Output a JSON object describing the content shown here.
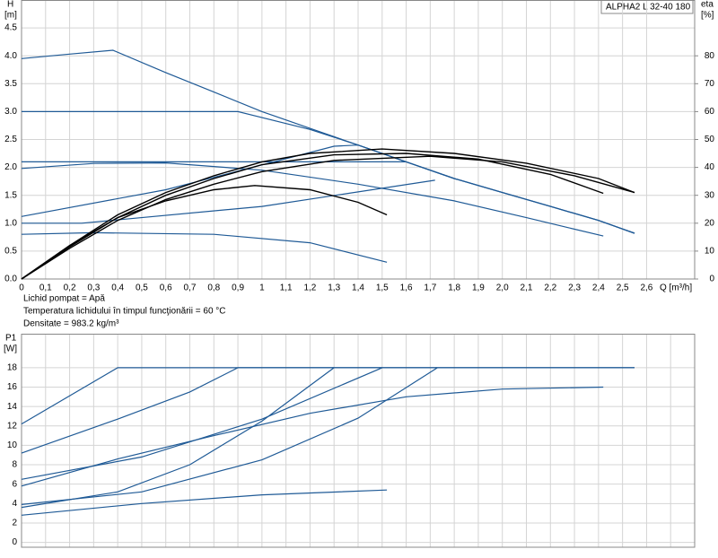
{
  "chart_data": [
    {
      "type": "line",
      "title": "ALPHA2 L 32-40 180",
      "ylabel": "H",
      "ylabel_unit": "[m]",
      "y2label": "eta",
      "y2label_unit": "[%]",
      "xlabel": "Q [m³/h]",
      "notes": [
        "Lichid pompat = Apă",
        "Temperatura lichidului în timpul funcţionării = 60 °C",
        "Densitate = 983.2 kg/m³"
      ],
      "xlim": [
        0,
        2.8
      ],
      "ylim": [
        0,
        5
      ],
      "y2lim": [
        0,
        100
      ],
      "grid": true,
      "xtick_labels": true,
      "xticks": [
        0,
        {
          "value": 0.1,
          "label": "0,1"
        },
        {
          "value": 0.2,
          "label": "0,2"
        },
        {
          "value": 0.3,
          "label": "0,3"
        },
        {
          "value": 0.4,
          "label": "0,4"
        },
        {
          "value": 0.5,
          "label": "0,5"
        },
        {
          "value": 0.6,
          "label": "0,6"
        },
        {
          "value": 0.7,
          "label": "0,7"
        },
        {
          "value": 0.8,
          "label": "0,8"
        },
        {
          "value": 0.9,
          "label": "0,9"
        },
        1,
        {
          "value": 1.1,
          "label": "1,1"
        },
        {
          "value": 1.2,
          "label": "1,2"
        },
        {
          "value": 1.3,
          "label": "1,3"
        },
        {
          "value": 1.4,
          "label": "1,4"
        },
        {
          "value": 1.5,
          "label": "1,5"
        },
        {
          "value": 1.6,
          "label": "1,6"
        },
        {
          "value": 1.7,
          "label": "1,7"
        },
        {
          "value": 1.8,
          "label": "1,8"
        },
        {
          "value": 1.9,
          "label": "1,9"
        },
        {
          "value": 2.0,
          "label": "2,0"
        },
        {
          "value": 2.1,
          "label": "2,1"
        },
        {
          "value": 2.2,
          "label": "2,2"
        },
        {
          "value": 2.3,
          "label": "2,3"
        },
        {
          "value": 2.4,
          "label": "2,4"
        },
        {
          "value": 2.5,
          "label": "2,5"
        },
        {
          "value": 2.6,
          "label": "2,6"
        }
      ],
      "yticks": [
        {
          "value": 0,
          "label": "0.0"
        },
        0.5,
        {
          "value": 1,
          "label": "1.0"
        },
        1.5,
        {
          "value": 2,
          "label": "2.0"
        },
        2.5,
        {
          "value": 3,
          "label": "3.0"
        },
        3.5,
        {
          "value": 4,
          "label": "4.0"
        },
        4.5
      ],
      "y2ticks": [
        0,
        10,
        20,
        30,
        40,
        50,
        60,
        70,
        80
      ],
      "series": [
        {
          "color": "#1f5a96",
          "x": [
            0,
            0.2,
            0.38,
            0.6,
            0.8,
            1.0,
            1.2,
            1.4,
            1.6,
            1.8,
            2.0,
            2.2,
            2.4,
            2.55
          ],
          "values": [
            3.95,
            4.03,
            4.1,
            3.7,
            3.35,
            3.0,
            2.7,
            2.4,
            2.1,
            1.8,
            1.55,
            1.3,
            1.05,
            0.82
          ]
        },
        {
          "color": "#1f5a96",
          "x": [
            0,
            0.9,
            1.2,
            1.4,
            1.6,
            1.8,
            2.0,
            2.2,
            2.4,
            2.55
          ],
          "values": [
            3.0,
            3.0,
            2.68,
            2.4,
            2.1,
            1.8,
            1.55,
            1.3,
            1.05,
            0.82
          ]
        },
        {
          "color": "#1f5a96",
          "x": [
            0,
            0.6,
            1.3,
            1.4,
            1.6,
            1.8,
            2.0,
            2.2,
            2.4,
            2.55
          ],
          "values": [
            1.12,
            1.6,
            2.38,
            2.4,
            2.1,
            1.8,
            1.55,
            1.3,
            1.05,
            0.82
          ]
        },
        {
          "color": "#1f5a96",
          "x": [
            0,
            1.6
          ],
          "values": [
            2.1,
            2.1
          ]
        },
        {
          "color": "#1f5a96",
          "x": [
            0,
            0.3,
            0.6,
            1.0,
            1.4,
            1.8,
            2.1,
            2.42
          ],
          "values": [
            1.98,
            2.07,
            2.08,
            1.95,
            1.7,
            1.4,
            1.1,
            0.77
          ]
        },
        {
          "color": "#1f5a96",
          "x": [
            0,
            0.25,
            1.0,
            1.72
          ],
          "values": [
            1.0,
            1.0,
            1.3,
            1.77
          ]
        },
        {
          "color": "#1f5a96",
          "x": [
            0,
            0.3,
            0.8,
            1.2,
            1.52
          ],
          "values": [
            0.8,
            0.83,
            0.8,
            0.65,
            0.3
          ]
        },
        {
          "color": "#000000",
          "axis": "y2",
          "x": [
            0,
            0.2,
            0.4,
            0.6,
            0.8,
            0.97,
            1.2,
            1.4,
            1.52
          ],
          "values": [
            0,
            12,
            22,
            28,
            32,
            33.5,
            32,
            27.5,
            23
          ]
        },
        {
          "color": "#000000",
          "axis": "y2",
          "x": [
            0,
            0.2,
            0.4,
            0.6,
            0.8,
            1.0,
            1.2,
            1.5,
            1.8,
            2.1,
            2.4,
            2.55
          ],
          "values": [
            0,
            12,
            23,
            31,
            37,
            42,
            45,
            46.6,
            45,
            41.5,
            36,
            31
          ]
        },
        {
          "color": "#000000",
          "axis": "y2",
          "x": [
            0,
            0.2,
            0.4,
            0.6,
            0.8,
            1.0,
            1.3,
            1.6,
            1.9,
            2.2,
            2.42
          ],
          "values": [
            0,
            11.5,
            22,
            30,
            36,
            41,
            44.5,
            45,
            43,
            37.5,
            30.7
          ]
        },
        {
          "color": "#000000",
          "axis": "y2",
          "x": [
            0,
            0.2,
            0.4,
            0.6,
            0.8,
            1.0,
            1.3,
            1.7,
            2.0,
            2.3,
            2.55
          ],
          "values": [
            0,
            11,
            21,
            28.5,
            34,
            38.5,
            42.5,
            44,
            42,
            37,
            31
          ]
        }
      ]
    },
    {
      "type": "line",
      "ylabel": "P1",
      "ylabel_unit": "[W]",
      "xlim": [
        0,
        2.8
      ],
      "ylim": [
        -0.5,
        21.5
      ],
      "grid": true,
      "xtick_labels": false,
      "xticks": [
        0,
        0.1,
        0.2,
        0.3,
        0.4,
        0.5,
        0.6,
        0.7,
        0.8,
        0.9,
        1.0,
        1.1,
        1.2,
        1.3,
        1.4,
        1.5,
        1.6,
        1.7,
        1.8,
        1.9,
        2.0,
        2.1,
        2.2,
        2.3,
        2.4,
        2.5,
        2.6,
        2.7
      ],
      "yticks": [
        0,
        2,
        4,
        6,
        8,
        10,
        12,
        14,
        16,
        18
      ],
      "series": [
        {
          "color": "#1f5a96",
          "x": [
            0,
            0.4,
            2.55
          ],
          "values": [
            12.2,
            18,
            18
          ]
        },
        {
          "color": "#1f5a96",
          "x": [
            0,
            0.4,
            0.7,
            0.9,
            2.55
          ],
          "values": [
            9.2,
            12.7,
            15.5,
            18,
            18
          ]
        },
        {
          "color": "#1f5a96",
          "x": [
            0,
            0.4,
            0.7,
            1.0,
            1.3
          ],
          "values": [
            3.6,
            5.2,
            8,
            12.5,
            18
          ]
        },
        {
          "color": "#1f5a96",
          "x": [
            0,
            0.5,
            1.0,
            1.5
          ],
          "values": [
            6.5,
            8.8,
            12.7,
            18
          ]
        },
        {
          "color": "#1f5a96",
          "x": [
            0,
            0.5,
            1.0,
            1.4,
            1.73
          ],
          "values": [
            3.9,
            5.2,
            8.5,
            12.8,
            18
          ]
        },
        {
          "color": "#1f5a96",
          "x": [
            0,
            0.4,
            0.8,
            1.2,
            1.6,
            2.0,
            2.42
          ],
          "values": [
            5.8,
            8.6,
            11,
            13.3,
            15,
            15.8,
            16
          ]
        },
        {
          "color": "#1f5a96",
          "x": [
            0,
            0.5,
            1.0,
            1.52
          ],
          "values": [
            2.8,
            4.0,
            4.9,
            5.4
          ]
        }
      ]
    }
  ]
}
